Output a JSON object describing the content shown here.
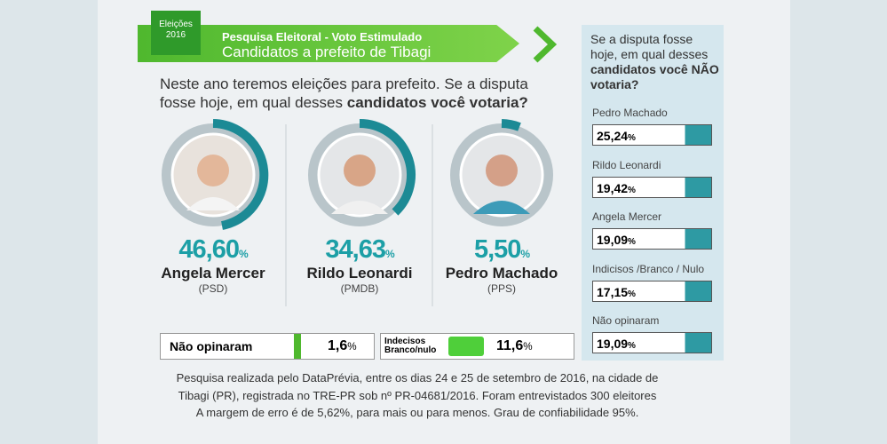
{
  "header": {
    "badge": "Eleições 2016",
    "line1": "Pesquisa Eleitoral  - Voto Estimulado",
    "line2": "Candidatos a prefeito de Tibagi"
  },
  "question": {
    "text": "Neste ano teremos eleições para prefeito. Se a disputa fosse hoje, em qual desses ",
    "bold": "candidatos você votaria?"
  },
  "candidates": [
    {
      "percent": "46,60",
      "unit": "%",
      "name": "Angela Mercer",
      "party": "(PSD)"
    },
    {
      "percent": "34,63",
      "unit": "%",
      "name": "Rildo Leonardi",
      "party": "(PMDB)"
    },
    {
      "percent": "5,50",
      "unit": "%",
      "name": "Pedro Machado",
      "party": "(PPS)"
    }
  ],
  "others": [
    {
      "label": "Não opinaram",
      "value": "1,6",
      "unit": "%"
    },
    {
      "label": "Indecisos Branco/nulo",
      "value": "11,6",
      "unit": "%"
    }
  ],
  "rejection": {
    "question": {
      "text": "Se a disputa fosse hoje, em qual desses ",
      "bold": "candidatos você NÃO votaria?"
    },
    "items": [
      {
        "label": "Pedro Machado",
        "value": "25,24",
        "unit": "%"
      },
      {
        "label": "Rildo Leonardi",
        "value": "19,42",
        "unit": "%"
      },
      {
        "label": "Angela Mercer",
        "value": "19,09",
        "unit": "%"
      },
      {
        "label": "Indicisos /Branco / Nulo",
        "value": "17,15",
        "unit": "%"
      },
      {
        "label": "Não opinaram",
        "value": "19,09",
        "unit": "%"
      }
    ]
  },
  "footnote": [
    "Pesquisa realizada pelo DataPrévia, entre os dias 24 e 25 de setembro de 2016, na cidade de",
    "Tibagi (PR), registrada no TRE-PR sob nº PR-04681/2016. Foram entrevistados 300 eleitores",
    "A margem de erro é de 5,62%, para mais ou para menos. Grau de confiabilidade 95%."
  ]
}
